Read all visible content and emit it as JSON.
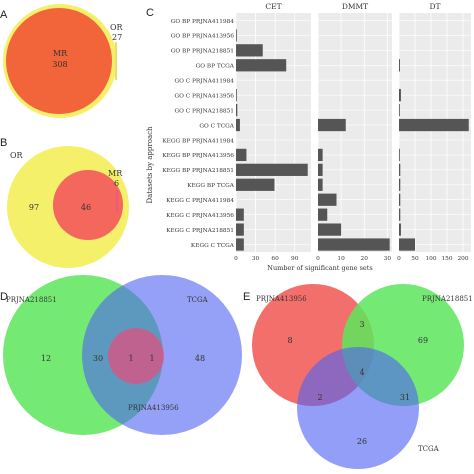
{
  "panels": {
    "a": "A",
    "b": "B",
    "c": "C",
    "d": "D",
    "e": "E"
  },
  "venn_a": {
    "big_label": "MR",
    "big_count": "308",
    "small_label": "OR",
    "small_count": "27"
  },
  "venn_b": {
    "left_label": "OR",
    "left_count": "97",
    "mid_count": "46",
    "right_label": "MR",
    "right_count": "6"
  },
  "venn_d": {
    "left_label": "PRJNA218851",
    "right_label": "TCGA",
    "bottom_label": "PRJNA413956",
    "c_left": "12",
    "c_leftmid": "30",
    "c_center": "1",
    "c_rightmid": "1",
    "c_right": "48"
  },
  "venn_e": {
    "left_label": "PRJNA413956",
    "right_label": "PRJNA218851",
    "bottom_label": "TCGA",
    "c_left": "8",
    "c_top": "3",
    "c_right": "69",
    "c_center": "4",
    "c_botleft": "2",
    "c_botright": "31",
    "c_bottom": "26"
  },
  "colors": {
    "bar": "#555555",
    "red": "#f25f5c",
    "green": "#5ce65c",
    "blue": "#6666ee",
    "yellow": "#f5f06a",
    "orange": "#f2643a"
  },
  "chart_data": {
    "type": "bar",
    "orientation": "horizontal",
    "ylabel": "Datasets by approach",
    "xlabel": "Number of significant gene sets",
    "categories": [
      "GO BP PRJNA411984",
      "GO BP PRJNA413956",
      "GO BP PRJNA218851",
      "GO BP TCGA",
      "GO C PRJNA411984",
      "GO C PRJNA413956",
      "GO C PRJNA218851",
      "GO C TCGA",
      "KEGG BP PRJNA411984",
      "KEGG BP PRJNA413956",
      "KEGG BP PRJNA218851",
      "KEGG BP TCGA",
      "KEGG C PRJNA411984",
      "KEGG C PRJNA413956",
      "KEGG C PRJNA218851",
      "KEGG C TCGA"
    ],
    "facets": [
      {
        "name": "CET",
        "xlim": [
          0,
          115
        ],
        "ticks": [
          "0",
          "30",
          "60",
          "90"
        ],
        "tick_values": [
          0,
          30,
          60,
          90
        ],
        "values": [
          0,
          1,
          41,
          77,
          0,
          1,
          2,
          6,
          0,
          16,
          110,
          59,
          0,
          12,
          12,
          12
        ]
      },
      {
        "name": "DMMT",
        "xlim": [
          0,
          32
        ],
        "ticks": [
          "0",
          "10",
          "20",
          "30"
        ],
        "tick_values": [
          0,
          10,
          20,
          30
        ],
        "values": [
          0,
          0,
          0,
          0,
          0,
          0,
          0,
          12,
          0,
          2,
          2,
          2,
          8,
          4,
          10,
          31
        ]
      },
      {
        "name": "DT",
        "xlim": [
          0,
          225
        ],
        "ticks": [
          "0",
          "50",
          "100",
          "150",
          "200"
        ],
        "tick_values": [
          0,
          50,
          100,
          150,
          200
        ],
        "values": [
          0,
          0,
          0,
          3,
          0,
          6,
          1,
          218,
          0,
          2,
          4,
          4,
          4,
          4,
          6,
          50
        ]
      }
    ]
  }
}
